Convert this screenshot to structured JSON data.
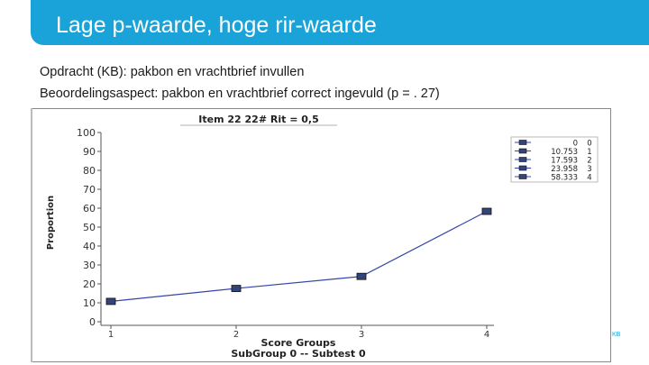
{
  "slide": {
    "title": "Lage p-waarde, hoge rir-waarde",
    "line1": "Opdracht (KB): pakbon en vrachtbrief invullen",
    "line2": "Beoordelingsaspect: pakbon en vrachtbrief correct ingevuld (p = . 27)",
    "footer_mark": "KB"
  },
  "colors": {
    "accent": "#1aa3d9",
    "line": "#3344aa",
    "marker": "#33447a"
  },
  "chart_data": {
    "type": "line",
    "title": "Item 22  22#  Rit = 0,5",
    "xlabel": "Score Groups",
    "ylabel": "Proportion",
    "subtitle": "SubGroup 0 -- Subtest 0",
    "categories": [
      "1",
      "2",
      "3",
      "4"
    ],
    "series": [
      {
        "values": [
          10.753,
          17.593,
          23.958,
          58.333
        ]
      }
    ],
    "ylim": [
      0,
      100
    ],
    "yticks": [
      0,
      10,
      20,
      30,
      40,
      50,
      60,
      70,
      80,
      90,
      100
    ],
    "legend": {
      "placement": "top-right",
      "rows": [
        {
          "value": "0",
          "group": "0"
        },
        {
          "value": "10.753",
          "group": "1"
        },
        {
          "value": "17.593",
          "group": "2"
        },
        {
          "value": "23.958",
          "group": "3"
        },
        {
          "value": "58.333",
          "group": "4"
        }
      ]
    }
  }
}
